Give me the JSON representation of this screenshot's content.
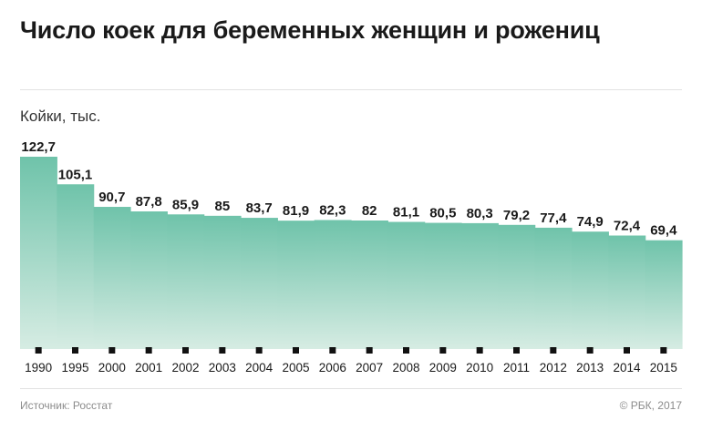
{
  "title": "Число коек для беременных женщин и рожениц",
  "unit_label": "Койки, тыс.",
  "source": "Источник: Росстат",
  "copyright": "© РБК, 2017",
  "colors": {
    "fill_top": "#6fc3aa",
    "fill_bottom": "#d6ece3",
    "text": "#1a1a1a",
    "tick": "#111111"
  },
  "chart_data": {
    "type": "area",
    "categories": [
      "1990",
      "1995",
      "2000",
      "2001",
      "2002",
      "2003",
      "2004",
      "2005",
      "2006",
      "2007",
      "2008",
      "2009",
      "2010",
      "2011",
      "2012",
      "2013",
      "2014",
      "2015"
    ],
    "values": [
      122.7,
      105.1,
      90.7,
      87.8,
      85.9,
      85,
      83.7,
      81.9,
      82.3,
      82,
      81.1,
      80.5,
      80.3,
      79.2,
      77.4,
      74.9,
      72.4,
      69.4
    ],
    "value_labels": [
      "122,7",
      "105,1",
      "90,7",
      "87,8",
      "85,9",
      "85",
      "83,7",
      "81,9",
      "82,3",
      "82",
      "81,1",
      "80,5",
      "80,3",
      "79,2",
      "77,4",
      "74,9",
      "72,4",
      "69,4"
    ],
    "ylim": [
      0,
      122.7
    ],
    "grid": false,
    "step": true
  }
}
